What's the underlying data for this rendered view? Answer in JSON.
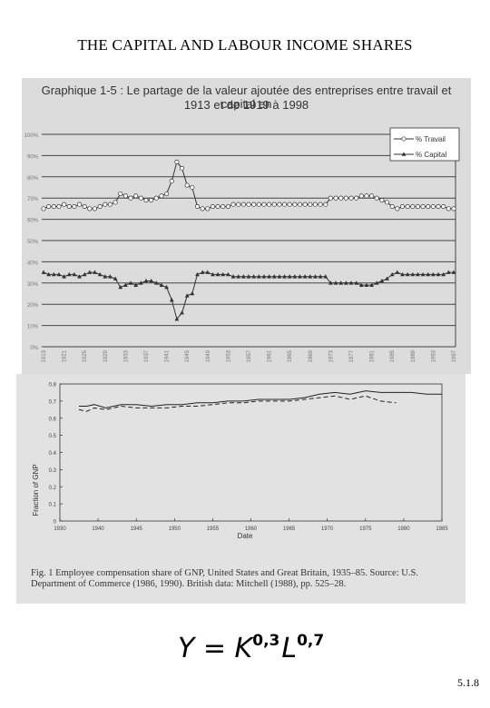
{
  "page": {
    "title": "THE CAPITAL AND LABOUR INCOME SHARES",
    "formula": {
      "y": "Y",
      "eq": " = ",
      "k": "K",
      "k_exp": "0,3",
      "l": "L",
      "l_exp": "0,7"
    },
    "slide_number": "5.1.8"
  },
  "chart_data": [
    {
      "type": "line",
      "title_line1": "Graphique 1-5 : Le partage de la valeur ajoutée des entreprises entre travail et capital en",
      "title_line2": "1913 et de 1919 à 1998",
      "ylim": [
        0,
        100
      ],
      "y_ticks": [
        "0%",
        "10%",
        "20%",
        "30%",
        "40%",
        "50%",
        "60%",
        "70%",
        "80%",
        "90%",
        "100%"
      ],
      "x_tick_labels": [
        "1913",
        "1921",
        "1925",
        "1929",
        "1933",
        "1937",
        "1941",
        "1945",
        "1949",
        "1953",
        "1957",
        "1961",
        "1965",
        "1969",
        "1973",
        "1977",
        "1981",
        "1985",
        "1989",
        "1993",
        "1997"
      ],
      "legend_position": "top-right",
      "grid": true,
      "series": [
        {
          "name": "% Travail",
          "color": "#333333",
          "marker": "circle",
          "values": [
            65,
            66,
            66,
            66,
            67,
            66,
            66,
            67,
            66,
            65,
            65,
            66,
            67,
            67,
            68,
            72,
            71,
            70,
            71,
            70,
            69,
            69,
            70,
            71,
            72,
            78,
            87,
            84,
            76,
            75,
            66,
            65,
            65,
            66,
            66,
            66,
            66,
            67,
            67,
            67,
            67,
            67,
            67,
            67,
            67,
            67,
            67,
            67,
            67,
            67,
            67,
            67,
            67,
            67,
            67,
            67,
            70,
            70,
            70,
            70,
            70,
            70,
            71,
            71,
            71,
            70,
            69,
            68,
            66,
            65,
            66,
            66,
            66,
            66,
            66,
            66,
            66,
            66,
            66,
            65,
            65
          ]
        },
        {
          "name": "% Capital",
          "color": "#333333",
          "marker": "triangle",
          "values": [
            35,
            34,
            34,
            34,
            33,
            34,
            34,
            33,
            34,
            35,
            35,
            34,
            33,
            33,
            32,
            28,
            29,
            30,
            29,
            30,
            31,
            31,
            30,
            29,
            28,
            22,
            13,
            16,
            24,
            25,
            34,
            35,
            35,
            34,
            34,
            34,
            34,
            33,
            33,
            33,
            33,
            33,
            33,
            33,
            33,
            33,
            33,
            33,
            33,
            33,
            33,
            33,
            33,
            33,
            33,
            33,
            30,
            30,
            30,
            30,
            30,
            30,
            29,
            29,
            29,
            30,
            31,
            32,
            34,
            35,
            34,
            34,
            34,
            34,
            34,
            34,
            34,
            34,
            34,
            35,
            35
          ]
        }
      ]
    },
    {
      "type": "line",
      "ylabel": "Fraction of GNP",
      "xlabel": "Date",
      "ylim": [
        0,
        0.8
      ],
      "xlim": [
        1930,
        1985
      ],
      "y_ticks": [
        "0",
        "0.1",
        "0.2",
        "0.3",
        "0.4",
        "0.5",
        "0.6",
        "0.7",
        "0.8"
      ],
      "x_ticks": [
        "1930",
        "1940",
        "1945",
        "1950",
        "1955",
        "1960",
        "1965",
        "1970",
        "1975",
        "1980",
        "1985"
      ],
      "grid": false,
      "series": [
        {
          "style": "solid",
          "x": [
            1935,
            1937,
            1939,
            1941,
            1943,
            1945,
            1947,
            1949,
            1951,
            1953,
            1955,
            1957,
            1959,
            1961,
            1963,
            1965,
            1967,
            1969,
            1971,
            1973,
            1975,
            1977,
            1979,
            1981,
            1983,
            1985
          ],
          "y": [
            0.67,
            0.67,
            0.68,
            0.66,
            0.68,
            0.68,
            0.67,
            0.68,
            0.68,
            0.69,
            0.69,
            0.7,
            0.7,
            0.71,
            0.71,
            0.71,
            0.72,
            0.74,
            0.75,
            0.74,
            0.76,
            0.75,
            0.75,
            0.75,
            0.74,
            0.74
          ]
        },
        {
          "style": "dashed",
          "x": [
            1935,
            1937,
            1939,
            1941,
            1943,
            1945,
            1947,
            1949,
            1951,
            1953,
            1955,
            1957,
            1959,
            1961,
            1963,
            1965,
            1967,
            1969,
            1971,
            1973,
            1975,
            1977,
            1979
          ],
          "y": [
            0.65,
            0.64,
            0.66,
            0.65,
            0.67,
            0.66,
            0.66,
            0.66,
            0.67,
            0.67,
            0.68,
            0.69,
            0.69,
            0.7,
            0.7,
            0.7,
            0.71,
            0.72,
            0.73,
            0.71,
            0.73,
            0.7,
            0.69
          ]
        }
      ],
      "caption": "Fig. 1  Employee compensation share of GNP, United States and Great Britain, 1935–85. Source: U.S. Department of Commerce (1986, 1990). British data: Mitchell (1988), pp. 525–28."
    }
  ]
}
